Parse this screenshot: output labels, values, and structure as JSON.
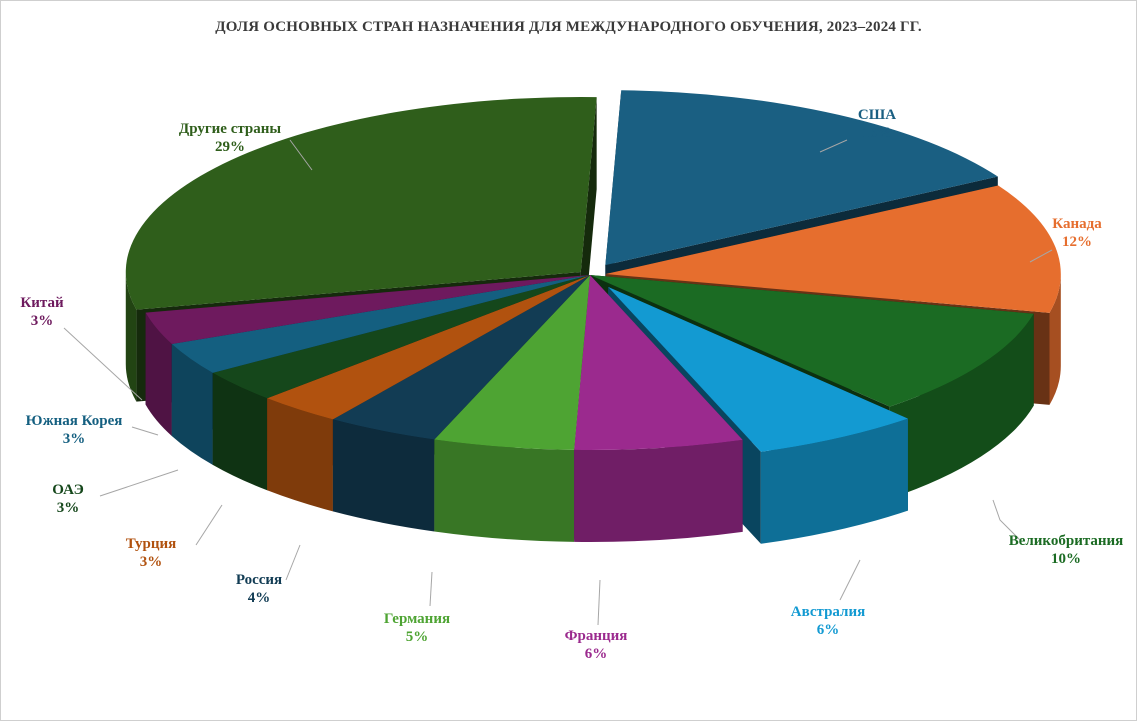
{
  "chart_data": {
    "type": "pie",
    "title": "ДОЛЯ ОСНОВНЫХ СТРАН НАЗНАЧЕНИЯ ДЛЯ МЕЖДУНАРОДНОГО ОБУЧЕНИЯ, 2023–2024 ГГ.",
    "unit": "%",
    "three_d": true,
    "slices": [
      {
        "label": "США",
        "value": 16,
        "value_label": "16%",
        "color": "#1a5f82"
      },
      {
        "label": "Канада",
        "value": 12,
        "value_label": "12%",
        "color": "#e66e2e"
      },
      {
        "label": "Великобритания",
        "value": 10,
        "value_label": "10%",
        "color": "#1b6b23"
      },
      {
        "label": "Австралия",
        "value": 6,
        "value_label": "6%",
        "color": "#139ad2"
      },
      {
        "label": "Франция",
        "value": 6,
        "value_label": "6%",
        "color": "#9b2a8e"
      },
      {
        "label": "Германия",
        "value": 5,
        "value_label": "5%",
        "color": "#4ea433"
      },
      {
        "label": "Россия",
        "value": 4,
        "value_label": "4%",
        "color": "#123c54"
      },
      {
        "label": "Турция",
        "value": 3,
        "value_label": "3%",
        "color": "#b1520f"
      },
      {
        "label": "ОАЭ",
        "value": 3,
        "value_label": "3%",
        "color": "#15471b"
      },
      {
        "label": "Южная Корея",
        "value": 3,
        "value_label": "3%",
        "color": "#145f80"
      },
      {
        "label": "Китай",
        "value": 3,
        "value_label": "3%",
        "color": "#6e1a5e"
      },
      {
        "label": "Другие страны",
        "value": 29,
        "value_label": "29%",
        "color": "#2f5e1b"
      }
    ]
  }
}
